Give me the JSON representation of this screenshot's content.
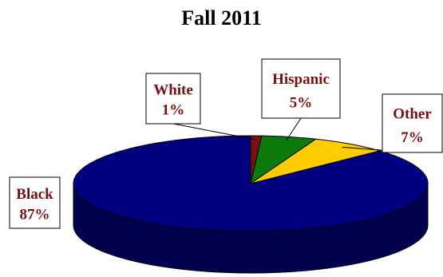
{
  "chart_data": {
    "type": "pie",
    "title": "Fall 2011",
    "three_d": true,
    "slices": [
      {
        "label": "White",
        "value": 1,
        "value_label": "1%",
        "color": "#7a0f0f"
      },
      {
        "label": "Hispanic",
        "value": 5,
        "value_label": "5%",
        "color": "#0a7a0a"
      },
      {
        "label": "Other",
        "value": 7,
        "value_label": "7%",
        "color": "#ffcc00"
      },
      {
        "label": "Black",
        "value": 87,
        "value_label": "87%",
        "color": "#000080"
      }
    ],
    "label_color": "#7a0f0f",
    "legend": "none"
  }
}
